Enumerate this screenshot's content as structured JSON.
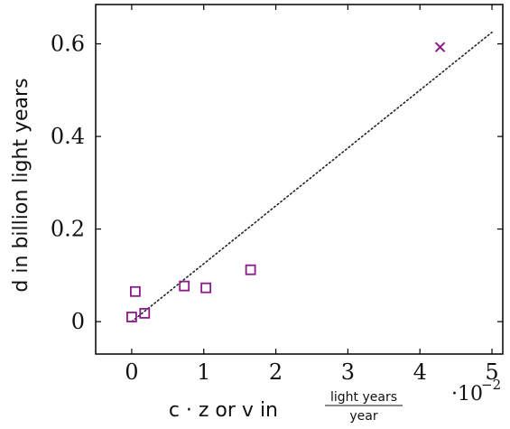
{
  "chart_data": {
    "type": "scatter",
    "xlabel": {
      "prefix": "c · z or v in",
      "unit_numerator": "light years",
      "unit_denominator": "year"
    },
    "ylabel": "d in billion light years",
    "x_multiplier": {
      "base": "·10",
      "exponent": "−2"
    },
    "xlim": [
      -0.5,
      5.15
    ],
    "ylim": [
      -0.07,
      0.685
    ],
    "x_ticks": [
      {
        "value": 0,
        "label": "0"
      },
      {
        "value": 1,
        "label": "1"
      },
      {
        "value": 2,
        "label": "2"
      },
      {
        "value": 3,
        "label": "3"
      },
      {
        "value": 4,
        "label": "4"
      },
      {
        "value": 5,
        "label": "5"
      }
    ],
    "y_ticks": [
      {
        "value": 0,
        "label": "0"
      },
      {
        "value": 0.2,
        "label": "0.2"
      },
      {
        "value": 0.4,
        "label": "0.4"
      },
      {
        "value": 0.6,
        "label": "0.6"
      }
    ],
    "grid": false,
    "series": [
      {
        "marker": "square",
        "color": "#8b1a8b",
        "points": [
          {
            "x": 0.0,
            "y": 0.01
          },
          {
            "x": 0.05,
            "y": 0.065
          },
          {
            "x": 0.18,
            "y": 0.018
          },
          {
            "x": 0.73,
            "y": 0.077
          },
          {
            "x": 1.03,
            "y": 0.073
          },
          {
            "x": 1.65,
            "y": 0.112
          }
        ]
      },
      {
        "marker": "cross",
        "color": "#8b1a8b",
        "points": [
          {
            "x": 4.28,
            "y": 0.593
          }
        ]
      }
    ],
    "fit_line": {
      "style": "dotted",
      "color": "#222222",
      "from": {
        "x": 0.0,
        "y": 0.0
      },
      "to": {
        "x": 5.0,
        "y": 0.625
      }
    }
  }
}
